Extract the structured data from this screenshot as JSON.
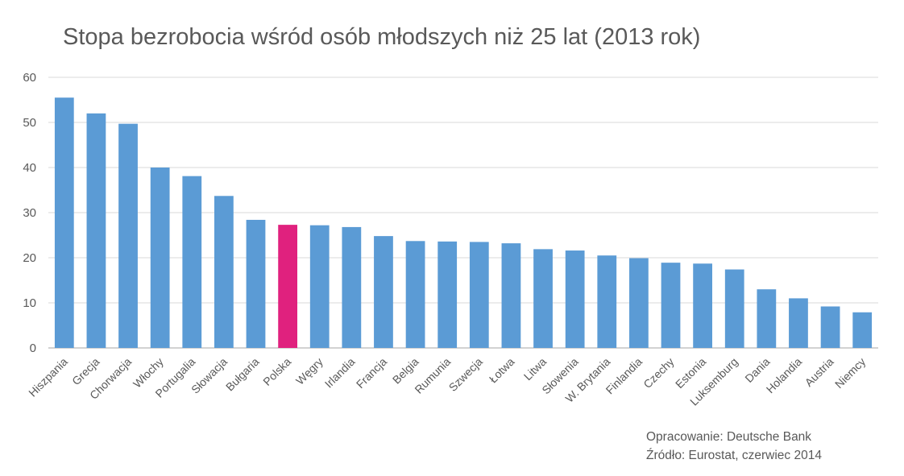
{
  "chart_data": {
    "type": "bar",
    "title": "Stopa bezrobocia wśród osób młodszych niż 25 lat (2013 rok)",
    "categories": [
      "Hiszpania",
      "Grecja",
      "Chorwacja",
      "Włochy",
      "Portugalia",
      "Słowacja",
      "Bułgaria",
      "Polska",
      "Węgry",
      "Irlandia",
      "Francja",
      "Belgia",
      "Rumunia",
      "Szwecja",
      "Łotwa",
      "Litwa",
      "Słowenia",
      "W. Brytania",
      "Finlandia",
      "Czechy",
      "Estonia",
      "Luksemburg",
      "Dania",
      "Holandia",
      "Austria",
      "Niemcy"
    ],
    "values": [
      55.5,
      52.0,
      49.7,
      40.0,
      38.1,
      33.7,
      28.4,
      27.3,
      27.2,
      26.8,
      24.8,
      23.7,
      23.6,
      23.5,
      23.2,
      21.9,
      21.6,
      20.5,
      19.9,
      18.9,
      18.7,
      17.4,
      13.0,
      11.0,
      9.2,
      7.9
    ],
    "ylim": [
      0,
      60
    ],
    "yticks": [
      "0",
      "10",
      "20",
      "30",
      "40",
      "50",
      "60"
    ],
    "grid": true,
    "colors": {
      "bar": "#5B9BD5",
      "highlight": "#E0217E",
      "grid": "#D9D9D9",
      "axis": "#A6A6A6",
      "text": "#595959"
    },
    "highlight_category": "Polska"
  },
  "source": {
    "line1": "Opracowanie: Deutsche Bank",
    "line2": "Źródło: Eurostat, czerwiec 2014"
  }
}
